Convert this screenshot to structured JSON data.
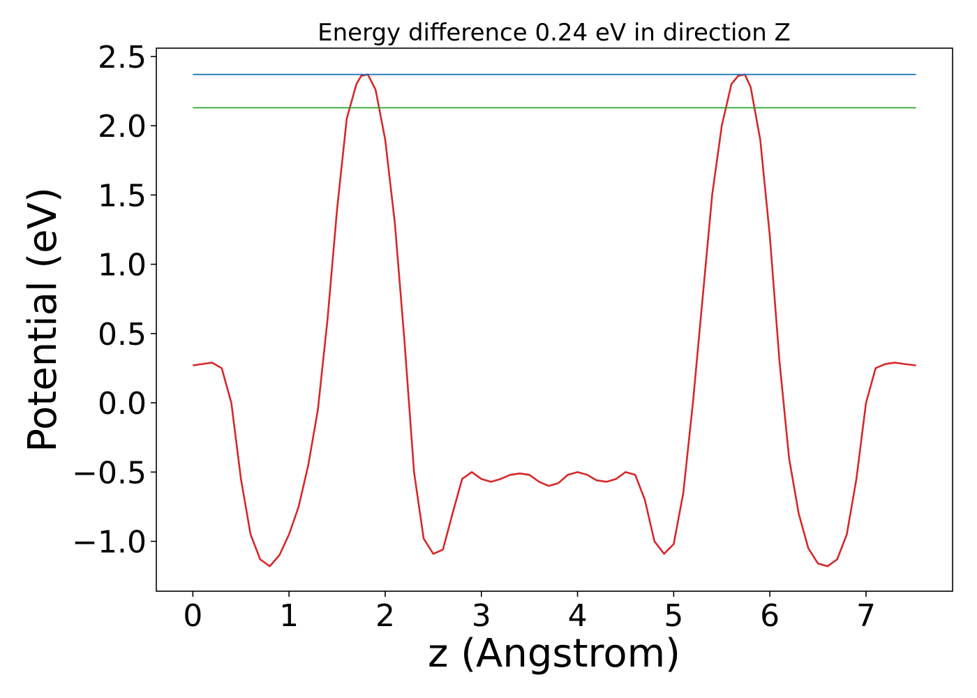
{
  "chart_data": {
    "type": "line",
    "title": "Energy difference 0.24 eV in direction Z",
    "xlabel": "z (Angstrom)",
    "ylabel": "Potential (eV)",
    "xlim": [
      -0.38,
      7.9
    ],
    "ylim": [
      -1.36,
      2.56
    ],
    "x_ticks": [
      0,
      1,
      2,
      3,
      4,
      5,
      6,
      7
    ],
    "x_tick_labels": [
      "0",
      "1",
      "2",
      "3",
      "4",
      "5",
      "6",
      "7"
    ],
    "y_ticks": [
      -1.0,
      -0.5,
      0.0,
      0.5,
      1.0,
      1.5,
      2.0,
      2.5
    ],
    "y_tick_labels": [
      "−1.0",
      "−0.5",
      "0.0",
      "0.5",
      "1.0",
      "1.5",
      "2.0",
      "2.5"
    ],
    "grid": false,
    "legend": "none",
    "series": [
      {
        "color": "#d62728",
        "x": [
          0.0,
          0.1,
          0.2,
          0.3,
          0.4,
          0.5,
          0.6,
          0.7,
          0.8,
          0.9,
          1.0,
          1.1,
          1.2,
          1.3,
          1.4,
          1.5,
          1.6,
          1.7,
          1.75,
          1.82,
          1.9,
          2.0,
          2.1,
          2.2,
          2.3,
          2.4,
          2.5,
          2.6,
          2.7,
          2.8,
          2.9,
          3.0,
          3.1,
          3.2,
          3.3,
          3.4,
          3.5,
          3.6,
          3.7,
          3.8,
          3.9,
          4.0,
          4.1,
          4.2,
          4.3,
          4.4,
          4.5,
          4.6,
          4.7,
          4.8,
          4.9,
          5.0,
          5.1,
          5.2,
          5.3,
          5.4,
          5.5,
          5.6,
          5.67,
          5.74,
          5.8,
          5.9,
          6.0,
          6.1,
          6.2,
          6.3,
          6.4,
          6.5,
          6.6,
          6.7,
          6.8,
          6.9,
          7.0,
          7.1,
          7.2,
          7.3,
          7.4,
          7.52
        ],
        "y": [
          0.27,
          0.28,
          0.29,
          0.25,
          0.0,
          -0.55,
          -0.95,
          -1.13,
          -1.18,
          -1.1,
          -0.95,
          -0.75,
          -0.45,
          -0.05,
          0.6,
          1.4,
          2.05,
          2.3,
          2.36,
          2.37,
          2.26,
          1.9,
          1.3,
          0.45,
          -0.5,
          -0.98,
          -1.09,
          -1.06,
          -0.8,
          -0.55,
          -0.5,
          -0.55,
          -0.57,
          -0.55,
          -0.52,
          -0.51,
          -0.52,
          -0.57,
          -0.6,
          -0.58,
          -0.52,
          -0.5,
          -0.52,
          -0.56,
          -0.57,
          -0.55,
          -0.5,
          -0.52,
          -0.7,
          -1.0,
          -1.09,
          -1.02,
          -0.65,
          0.0,
          0.75,
          1.5,
          2.0,
          2.3,
          2.36,
          2.37,
          2.28,
          1.9,
          1.2,
          0.3,
          -0.4,
          -0.8,
          -1.05,
          -1.16,
          -1.18,
          -1.13,
          -0.95,
          -0.55,
          0.0,
          0.25,
          0.28,
          0.29,
          0.28,
          0.27
        ],
        "linewidth_note": "",
        "marker": "none"
      },
      {
        "color": "#1f77b4",
        "x": [
          0.0,
          7.52
        ],
        "y": [
          2.37,
          2.37
        ]
      },
      {
        "color": "#2ca02c",
        "x": [
          0.0,
          7.52
        ],
        "y": [
          2.13,
          2.13
        ]
      }
    ]
  }
}
